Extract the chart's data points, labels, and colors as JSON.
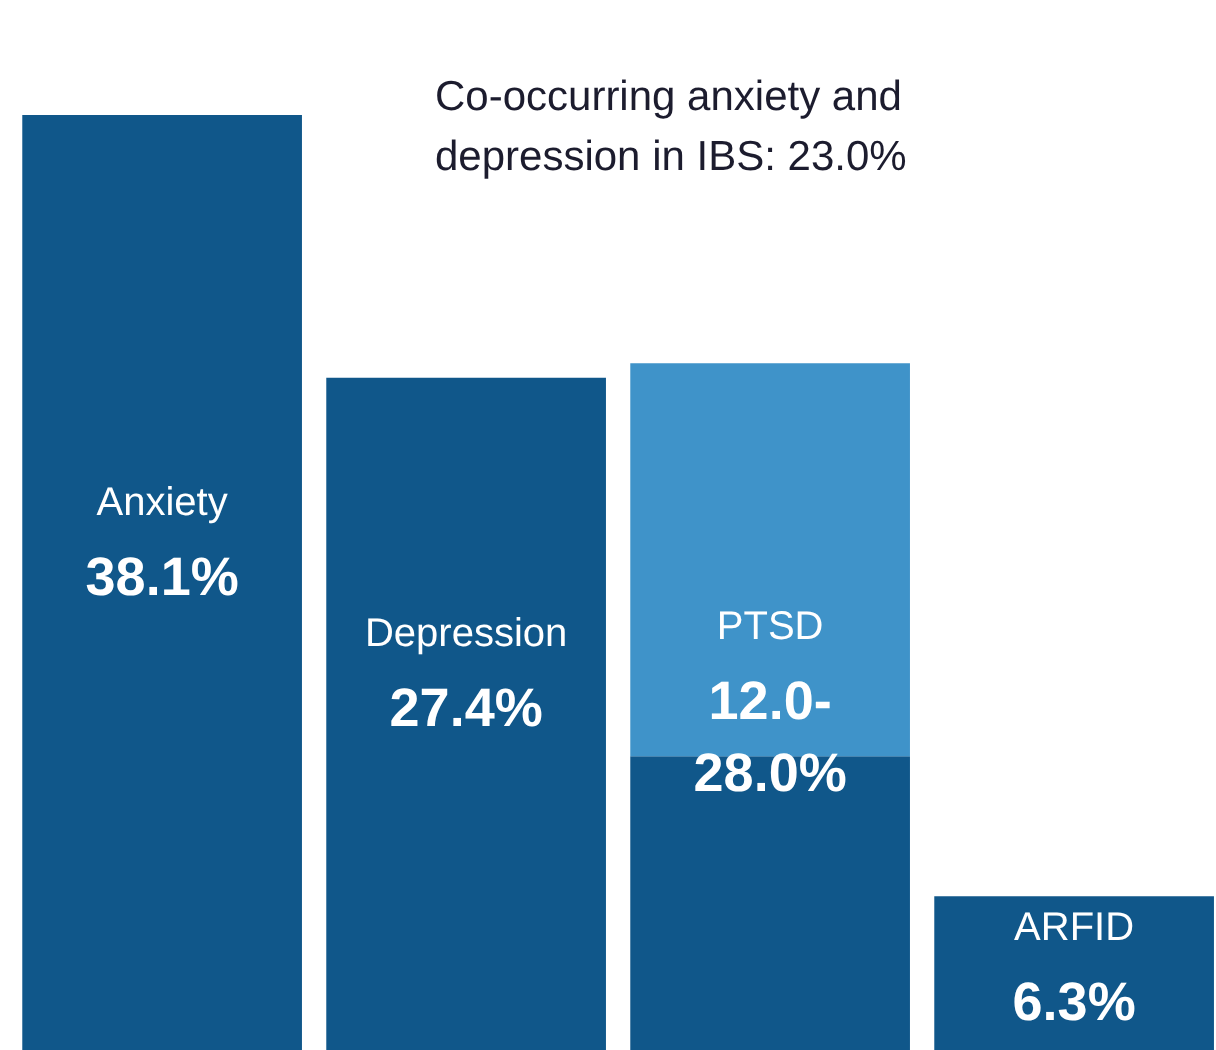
{
  "chart_data": {
    "type": "bar",
    "stacked": true,
    "categories": [
      "Anxiety",
      "Depression",
      "PTSD",
      "ARFID"
    ],
    "series": [
      {
        "color": "#10578a",
        "values": [
          38.1,
          27.4,
          12.0,
          6.3
        ],
        "value_labels": [
          "38.1%",
          "27.4%",
          "12.0-28.0%",
          "6.3%"
        ]
      },
      {
        "color": "#3f93c9",
        "values": [
          null,
          null,
          16.0,
          null
        ]
      }
    ],
    "annotations": [
      "Co-occurring anxiety and depression in IBS: 23.0%"
    ]
  }
}
